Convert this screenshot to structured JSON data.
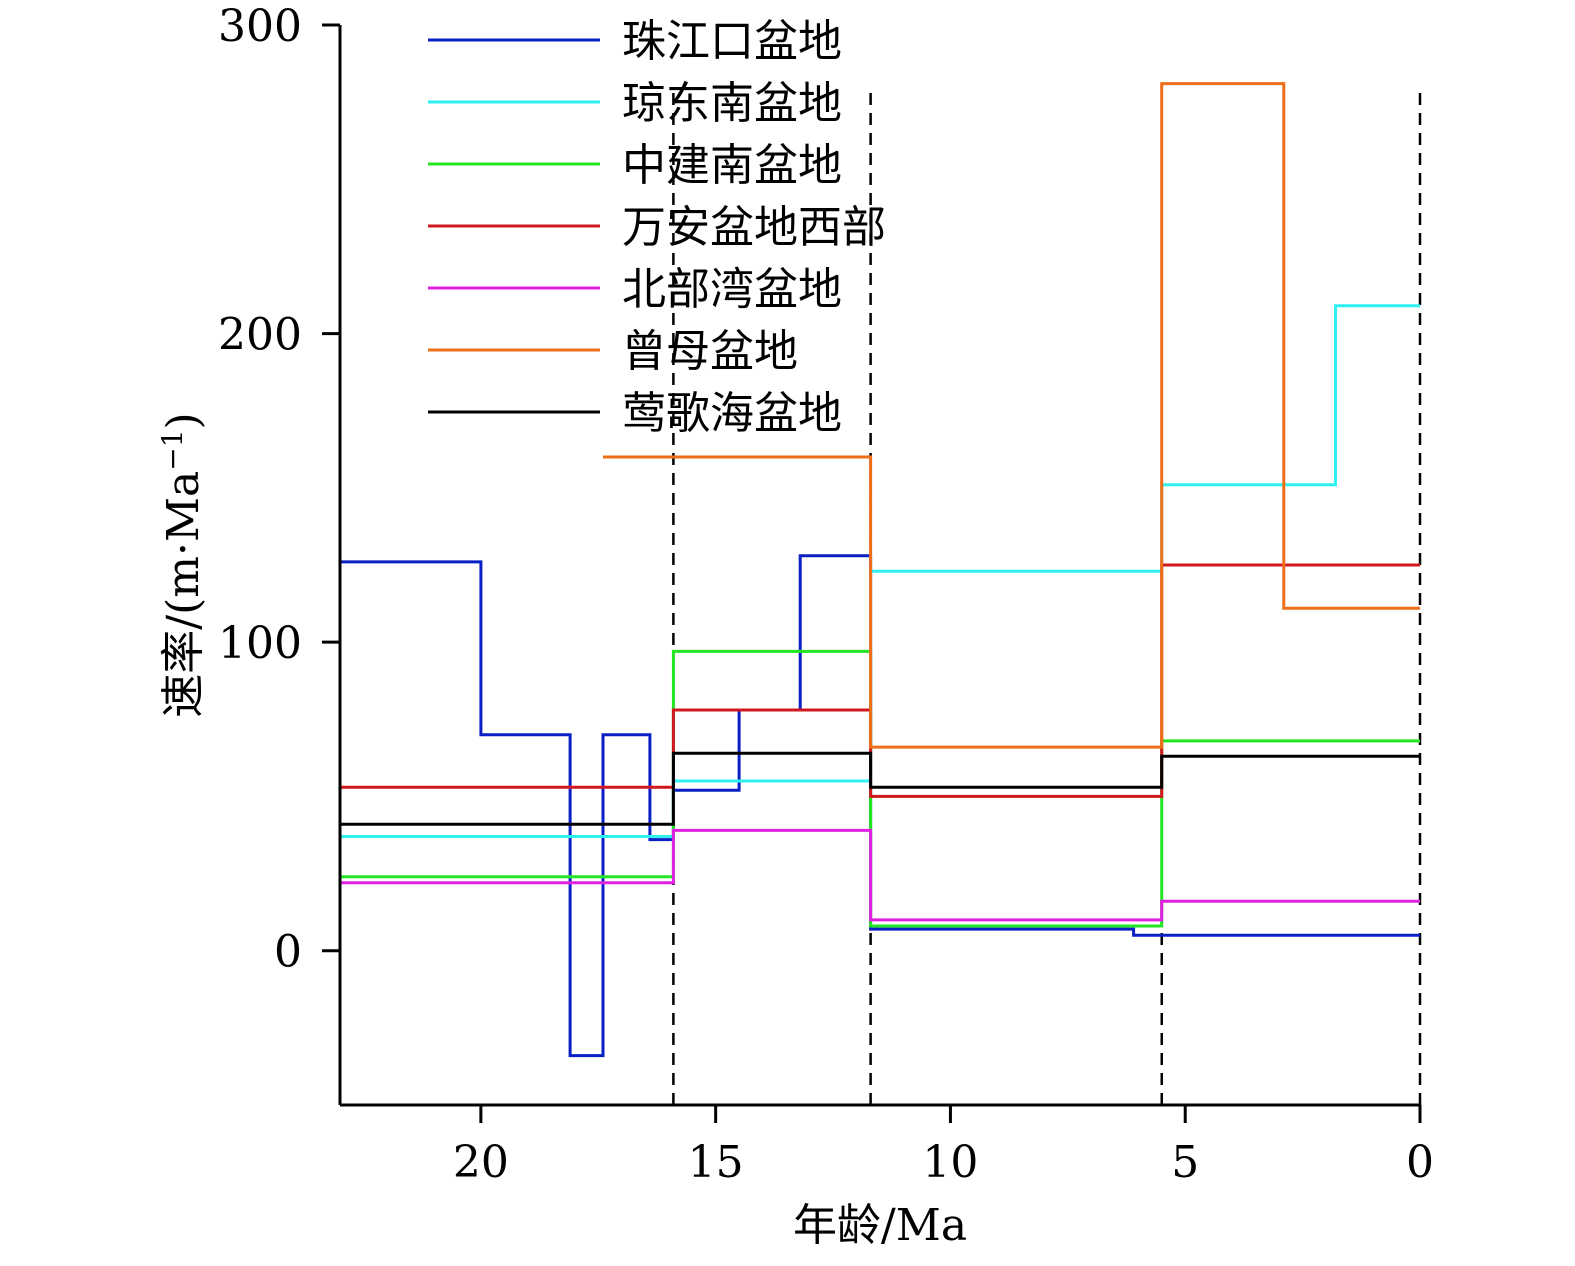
{
  "chart_data": {
    "type": "line",
    "step": true,
    "x_reversed": true,
    "xlabel": "年龄/Ma",
    "ylabel_main": "速率/(m·Ma",
    "ylabel_sup": "−1",
    "ylabel_close": ")",
    "xlim": [
      23,
      0
    ],
    "ylim": [
      -50,
      300
    ],
    "x_ticks": [
      20,
      15,
      10,
      5,
      0
    ],
    "y_ticks": [
      0,
      100,
      200,
      300
    ],
    "boundaries": [
      15.9,
      11.7,
      5.5,
      0
    ],
    "legend_position": "top-center",
    "series": [
      {
        "name": "珠江口盆地",
        "color": "#0a1fc4",
        "segments": [
          [
            23,
            20,
            126
          ],
          [
            20,
            18.1,
            70
          ],
          [
            18.1,
            17.4,
            -34
          ],
          [
            17.4,
            16.4,
            70
          ],
          [
            16.4,
            15.9,
            36
          ],
          [
            15.9,
            14.5,
            52
          ],
          [
            14.5,
            13.2,
            78
          ],
          [
            13.2,
            11.7,
            128
          ],
          [
            11.7,
            6.1,
            7
          ],
          [
            6.1,
            0,
            5
          ]
        ]
      },
      {
        "name": "琼东南盆地",
        "color": "#2ef0f0",
        "segments": [
          [
            23,
            15.9,
            37
          ],
          [
            15.9,
            11.7,
            55
          ],
          [
            11.7,
            5.5,
            123
          ],
          [
            5.5,
            1.8,
            151
          ],
          [
            1.8,
            0,
            209
          ]
        ]
      },
      {
        "name": "中建南盆地",
        "color": "#22e622",
        "segments": [
          [
            23,
            15.9,
            24
          ],
          [
            15.9,
            11.7,
            97
          ],
          [
            11.7,
            5.5,
            8
          ],
          [
            5.5,
            0,
            68
          ]
        ]
      },
      {
        "name": "万安盆地西部",
        "color": "#d0181e",
        "segments": [
          [
            23,
            15.9,
            53
          ],
          [
            15.9,
            11.7,
            78
          ],
          [
            11.7,
            5.5,
            50
          ],
          [
            5.5,
            0,
            125
          ]
        ]
      },
      {
        "name": "北部湾盆地",
        "color": "#e020e0",
        "segments": [
          [
            23,
            15.9,
            22
          ],
          [
            15.9,
            11.7,
            39
          ],
          [
            11.7,
            5.5,
            10
          ],
          [
            5.5,
            0,
            16
          ]
        ]
      },
      {
        "name": "曾母盆地",
        "color": "#ee6e1a",
        "segments": [
          [
            17.4,
            11.7,
            160
          ],
          [
            11.7,
            5.5,
            66
          ],
          [
            5.5,
            2.9,
            281
          ],
          [
            2.9,
            0,
            111
          ]
        ]
      },
      {
        "name": "莺歌海盆地",
        "color": "#000000",
        "segments": [
          [
            23,
            15.9,
            41
          ],
          [
            15.9,
            11.7,
            64
          ],
          [
            11.7,
            5.5,
            53
          ],
          [
            5.5,
            0,
            63
          ]
        ]
      }
    ]
  }
}
